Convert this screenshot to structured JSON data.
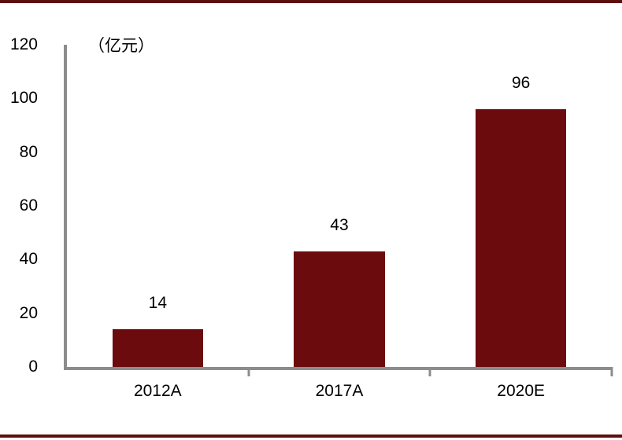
{
  "page": {
    "background": "#FFFFFF"
  },
  "accents": {
    "band_color": "#5D0E10"
  },
  "chart_data": {
    "type": "bar",
    "title": "",
    "unit_label": "（亿元）",
    "categories": [
      "2012A",
      "2017A",
      "2020E"
    ],
    "values": [
      14,
      43,
      96
    ],
    "value_labels": [
      "14",
      "43",
      "96"
    ],
    "ylim": [
      0,
      120
    ],
    "yticks": [
      0,
      20,
      40,
      60,
      80,
      100,
      120
    ],
    "xlabel": "",
    "ylabel": "",
    "grid": false,
    "legend": false,
    "bar_color": "#6C0B0D",
    "axis_color": "#8C8C8C",
    "text_color": "#000000"
  }
}
